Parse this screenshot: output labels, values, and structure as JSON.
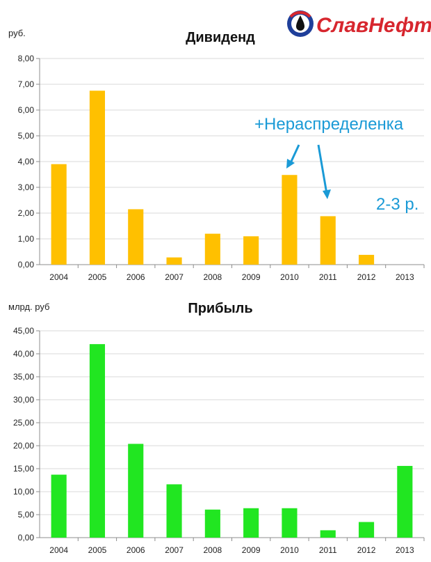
{
  "logo": {
    "text": "СлавНефть",
    "colors": {
      "red": "#d7262e",
      "blue": "#1f3f9a",
      "black": "#111111"
    }
  },
  "chart_data": [
    {
      "type": "bar",
      "title": "Дивиденд",
      "ylabel": "руб.",
      "xlabel": "",
      "categories": [
        "2004",
        "2005",
        "2006",
        "2007",
        "2008",
        "2009",
        "2010",
        "2011",
        "2012",
        "2013"
      ],
      "values": [
        3.9,
        6.75,
        2.15,
        0.28,
        1.2,
        1.1,
        3.48,
        1.88,
        0.38,
        0
      ],
      "ylim": [
        0,
        8
      ],
      "yticks": [
        "0,00",
        "1,00",
        "2,00",
        "3,00",
        "4,00",
        "5,00",
        "6,00",
        "7,00",
        "8,00"
      ],
      "ytick_values": [
        0,
        1,
        2,
        3,
        4,
        5,
        6,
        7,
        8
      ],
      "color": "#ffc000",
      "grid": true,
      "annotations": [
        "+Нераспределенка",
        "2-3 р."
      ],
      "annotation_color": "#1a9ad6"
    },
    {
      "type": "bar",
      "title": "Прибыль",
      "ylabel": "млрд. руб",
      "xlabel": "",
      "categories": [
        "2004",
        "2005",
        "2006",
        "2007",
        "2008",
        "2009",
        "2010",
        "2011",
        "2012",
        "2013"
      ],
      "values": [
        13.7,
        42.1,
        20.4,
        11.6,
        6.1,
        6.4,
        6.4,
        1.6,
        3.4,
        15.6
      ],
      "ylim": [
        0,
        45
      ],
      "yticks": [
        "0,00",
        "5,00",
        "10,00",
        "15,00",
        "20,00",
        "25,00",
        "30,00",
        "35,00",
        "40,00",
        "45,00"
      ],
      "ytick_values": [
        0,
        5,
        10,
        15,
        20,
        25,
        30,
        35,
        40,
        45
      ],
      "color": "#21e621",
      "grid": true
    }
  ]
}
